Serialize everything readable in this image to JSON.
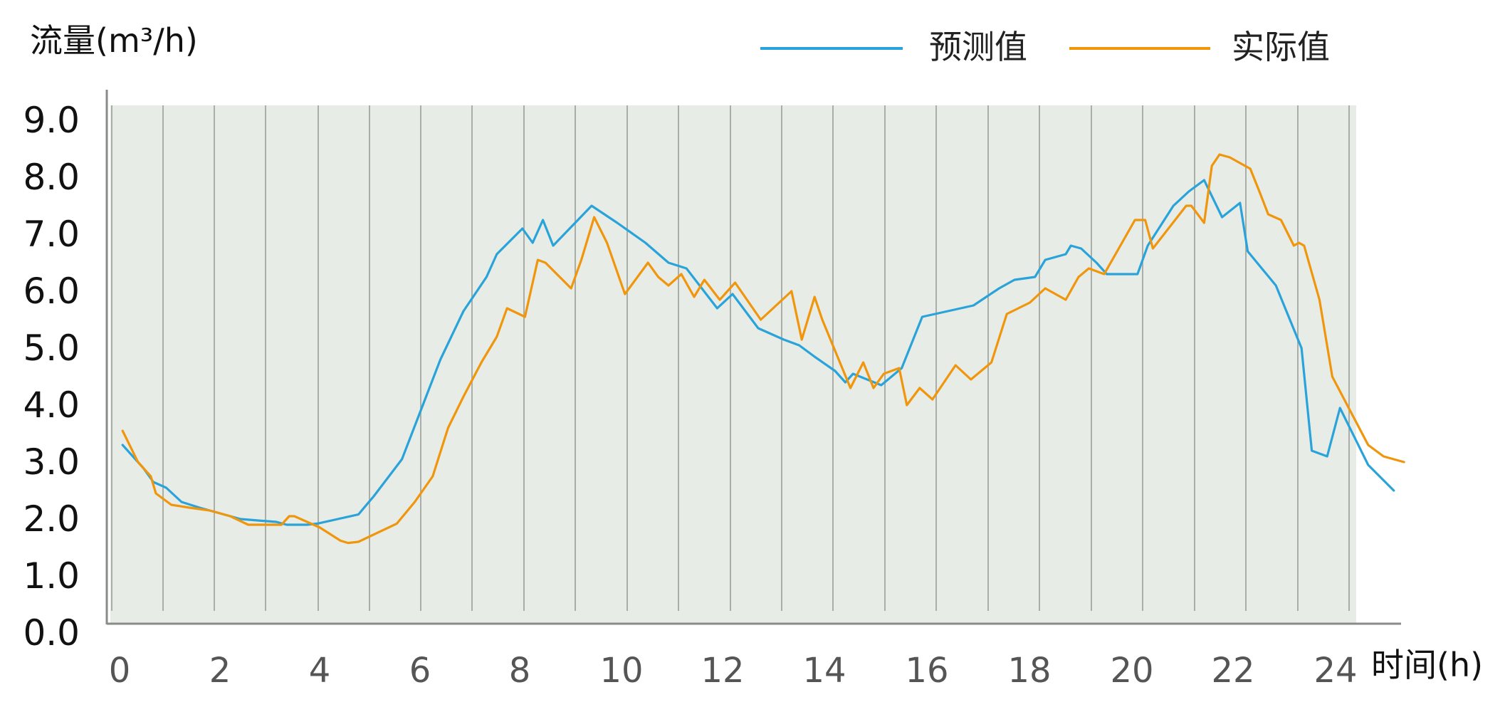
{
  "chart_data": {
    "type": "line",
    "xlabel": "时间(h)",
    "ylabel": "流量(m³/h)",
    "xlim": [
      0,
      24.5
    ],
    "ylim": [
      0,
      9.0
    ],
    "xticks": [
      0,
      2,
      4,
      6,
      8,
      10,
      12,
      14,
      16,
      18,
      20,
      22,
      24
    ],
    "yticks": [
      0,
      1,
      2,
      3,
      4,
      5,
      6,
      7,
      8,
      9
    ],
    "ytick_labels": [
      "0.0",
      "1.0",
      "2.0",
      "3.0",
      "4.0",
      "5.0",
      "6.0",
      "7.0",
      "8.0",
      "9.0"
    ],
    "grid": "vertical",
    "legend_position": "top-right",
    "colors": {
      "plot_background": "#e8ece6",
      "grid": "#a9afa8",
      "axis": "#8a8a8a"
    },
    "series": [
      {
        "name": "预测值",
        "color": "#29a3d9",
        "points": [
          [
            0.1,
            3.3
          ],
          [
            0.3,
            3.1
          ],
          [
            0.5,
            2.9
          ],
          [
            0.7,
            2.65
          ],
          [
            0.95,
            2.55
          ],
          [
            1.25,
            2.3
          ],
          [
            1.6,
            2.2
          ],
          [
            2.0,
            2.1
          ],
          [
            2.4,
            2.0
          ],
          [
            2.8,
            1.97
          ],
          [
            3.1,
            1.95
          ],
          [
            3.3,
            1.9
          ],
          [
            3.7,
            1.9
          ],
          [
            3.9,
            1.92
          ],
          [
            4.3,
            2.0
          ],
          [
            4.7,
            2.08
          ],
          [
            5.0,
            2.4
          ],
          [
            5.55,
            3.05
          ],
          [
            6.0,
            4.1
          ],
          [
            6.3,
            4.8
          ],
          [
            6.75,
            5.65
          ],
          [
            7.2,
            6.25
          ],
          [
            7.4,
            6.65
          ],
          [
            7.9,
            7.1
          ],
          [
            8.1,
            6.85
          ],
          [
            8.3,
            7.25
          ],
          [
            8.5,
            6.8
          ],
          [
            9.25,
            7.5
          ],
          [
            9.75,
            7.2
          ],
          [
            10.3,
            6.85
          ],
          [
            10.75,
            6.5
          ],
          [
            11.1,
            6.4
          ],
          [
            11.7,
            5.7
          ],
          [
            12.0,
            5.95
          ],
          [
            12.5,
            5.35
          ],
          [
            12.75,
            5.25
          ],
          [
            13.0,
            5.15
          ],
          [
            13.3,
            5.05
          ],
          [
            13.6,
            4.85
          ],
          [
            14.0,
            4.6
          ],
          [
            14.2,
            4.4
          ],
          [
            14.35,
            4.55
          ],
          [
            14.9,
            4.35
          ],
          [
            15.3,
            4.65
          ],
          [
            15.7,
            5.55
          ],
          [
            16.2,
            5.65
          ],
          [
            16.7,
            5.75
          ],
          [
            17.2,
            6.05
          ],
          [
            17.5,
            6.2
          ],
          [
            17.9,
            6.25
          ],
          [
            18.1,
            6.55
          ],
          [
            18.5,
            6.65
          ],
          [
            18.6,
            6.8
          ],
          [
            18.8,
            6.75
          ],
          [
            19.1,
            6.5
          ],
          [
            19.3,
            6.3
          ],
          [
            19.7,
            6.3
          ],
          [
            19.9,
            6.3
          ],
          [
            20.1,
            6.8
          ],
          [
            20.35,
            7.15
          ],
          [
            20.6,
            7.5
          ],
          [
            20.9,
            7.75
          ],
          [
            21.2,
            7.95
          ],
          [
            21.55,
            7.3
          ],
          [
            21.9,
            7.55
          ],
          [
            22.05,
            6.7
          ],
          [
            22.6,
            6.1
          ],
          [
            23.1,
            5.0
          ],
          [
            23.3,
            3.2
          ],
          [
            23.6,
            3.1
          ],
          [
            23.85,
            3.95
          ],
          [
            24.4,
            2.95
          ],
          [
            24.9,
            2.5
          ]
        ]
      },
      {
        "name": "实际值",
        "color": "#f0960d",
        "points": [
          [
            0.1,
            3.55
          ],
          [
            0.4,
            3.0
          ],
          [
            0.65,
            2.75
          ],
          [
            0.75,
            2.45
          ],
          [
            1.05,
            2.25
          ],
          [
            1.4,
            2.2
          ],
          [
            1.8,
            2.15
          ],
          [
            2.2,
            2.05
          ],
          [
            2.55,
            1.9
          ],
          [
            2.75,
            1.9
          ],
          [
            3.2,
            1.9
          ],
          [
            3.35,
            2.05
          ],
          [
            3.45,
            2.05
          ],
          [
            3.7,
            1.95
          ],
          [
            3.95,
            1.85
          ],
          [
            4.35,
            1.62
          ],
          [
            4.5,
            1.58
          ],
          [
            4.7,
            1.6
          ],
          [
            5.45,
            1.92
          ],
          [
            5.8,
            2.3
          ],
          [
            6.15,
            2.75
          ],
          [
            6.45,
            3.6
          ],
          [
            6.75,
            4.15
          ],
          [
            7.1,
            4.75
          ],
          [
            7.4,
            5.2
          ],
          [
            7.6,
            5.7
          ],
          [
            7.95,
            5.55
          ],
          [
            8.2,
            6.55
          ],
          [
            8.35,
            6.5
          ],
          [
            8.85,
            6.05
          ],
          [
            9.05,
            6.55
          ],
          [
            9.3,
            7.3
          ],
          [
            9.55,
            6.85
          ],
          [
            9.9,
            5.95
          ],
          [
            10.35,
            6.5
          ],
          [
            10.55,
            6.25
          ],
          [
            10.75,
            6.1
          ],
          [
            11.0,
            6.3
          ],
          [
            11.25,
            5.9
          ],
          [
            11.45,
            6.2
          ],
          [
            11.75,
            5.85
          ],
          [
            12.05,
            6.15
          ],
          [
            12.55,
            5.5
          ],
          [
            13.15,
            6.0
          ],
          [
            13.35,
            5.15
          ],
          [
            13.6,
            5.9
          ],
          [
            13.75,
            5.5
          ],
          [
            14.3,
            4.3
          ],
          [
            14.55,
            4.75
          ],
          [
            14.75,
            4.3
          ],
          [
            14.95,
            4.55
          ],
          [
            15.25,
            4.65
          ],
          [
            15.4,
            4.0
          ],
          [
            15.65,
            4.3
          ],
          [
            15.9,
            4.1
          ],
          [
            16.35,
            4.7
          ],
          [
            16.65,
            4.45
          ],
          [
            17.05,
            4.75
          ],
          [
            17.35,
            5.6
          ],
          [
            17.8,
            5.8
          ],
          [
            18.1,
            6.05
          ],
          [
            18.5,
            5.85
          ],
          [
            18.75,
            6.25
          ],
          [
            18.95,
            6.4
          ],
          [
            19.25,
            6.3
          ],
          [
            19.85,
            7.25
          ],
          [
            20.05,
            7.25
          ],
          [
            20.2,
            6.75
          ],
          [
            20.85,
            7.5
          ],
          [
            20.95,
            7.5
          ],
          [
            21.2,
            7.2
          ],
          [
            21.35,
            8.2
          ],
          [
            21.5,
            8.4
          ],
          [
            21.7,
            8.35
          ],
          [
            22.1,
            8.15
          ],
          [
            22.3,
            7.7
          ],
          [
            22.45,
            7.35
          ],
          [
            22.7,
            7.25
          ],
          [
            22.95,
            6.8
          ],
          [
            23.05,
            6.85
          ],
          [
            23.15,
            6.8
          ],
          [
            23.45,
            5.85
          ],
          [
            23.7,
            4.5
          ],
          [
            24.4,
            3.3
          ],
          [
            24.7,
            3.1
          ],
          [
            25.1,
            3.0
          ]
        ]
      }
    ]
  }
}
